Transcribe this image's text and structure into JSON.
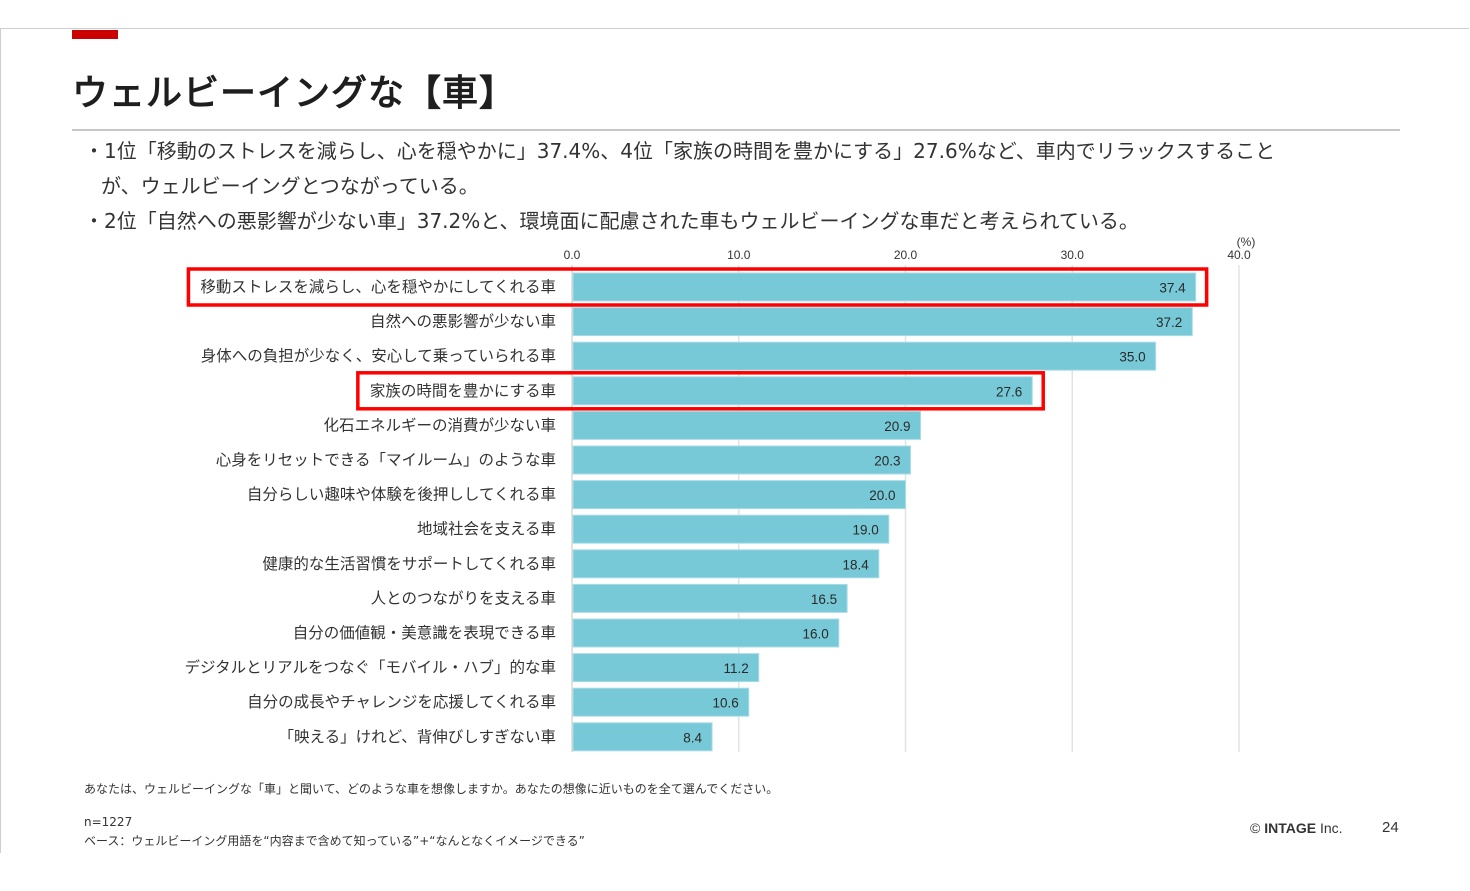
{
  "header": {
    "title": "ウェルビーイングな【車】"
  },
  "summary": {
    "bullets": [
      {
        "line1": "・1位「移動のストレスを減らし、心を穏やかに」37.4%、4位「家族の時間を豊かにする」27.6%など、車内でリラックスすること",
        "line2": "が、ウェルビーイングとつながっている。"
      },
      {
        "line1": "・2位「自然への悪影響が少ない車」37.2%と、環境面に配慮された車もウェルビーイングな車だと考えられている。"
      }
    ]
  },
  "chart_data": {
    "type": "bar",
    "orientation": "horizontal",
    "title": "",
    "xlabel": "",
    "ylabel": "",
    "unit_label": "(%)",
    "xlim": [
      0,
      40
    ],
    "xticks": [
      "0.0",
      "10.0",
      "20.0",
      "30.0",
      "40.0"
    ],
    "grid": true,
    "bar_color": "#77c9d7",
    "highlight_color": "#ff0000",
    "categories": [
      "移動ストレスを減らし、心を穏やかにしてくれる車",
      "自然への悪影響が少ない車",
      "身体への負担が少なく、安心して乗っていられる車",
      "家族の時間を豊かにする車",
      "化石エネルギーの消費が少ない車",
      "心身をリセットできる「マイルーム」のような車",
      "自分らしい趣味や体験を後押ししてくれる車",
      "地域社会を支える車",
      "健康的な生活習慣をサポートしてくれる車",
      "人とのつながりを支える車",
      "自分の価値観・美意識を表現できる車",
      "デジタルとリアルをつなぐ「モバイル・ハブ」的な車",
      "自分の成長やチャレンジを応援してくれる車",
      "「映える」けれど、背伸びしすぎない車"
    ],
    "values": [
      37.4,
      37.2,
      35.0,
      27.6,
      20.9,
      20.3,
      20.0,
      19.0,
      18.4,
      16.5,
      16.0,
      11.2,
      10.6,
      8.4
    ],
    "value_labels": [
      "37.4",
      "37.2",
      "35.0",
      "27.6",
      "20.9",
      "20.3",
      "20.0",
      "19.0",
      "18.4",
      "16.5",
      "16.0",
      "11.2",
      "10.6",
      "8.4"
    ],
    "highlighted": [
      0,
      3
    ]
  },
  "footer": {
    "question": "あなたは、ウェルビーイングな「車」と聞いて、どのような車を想像しますか。あなたの想像に近いものを全て選んでください。",
    "sample_size": "n=1227",
    "base": "ベース：ウェルビーイング用語を“内容まで含めて知っている”+“なんとなくイメージできる”",
    "copyright_symbol": "©",
    "company_bold": "INTAGE",
    "company_suffix": " Inc.",
    "page_number": "24"
  }
}
